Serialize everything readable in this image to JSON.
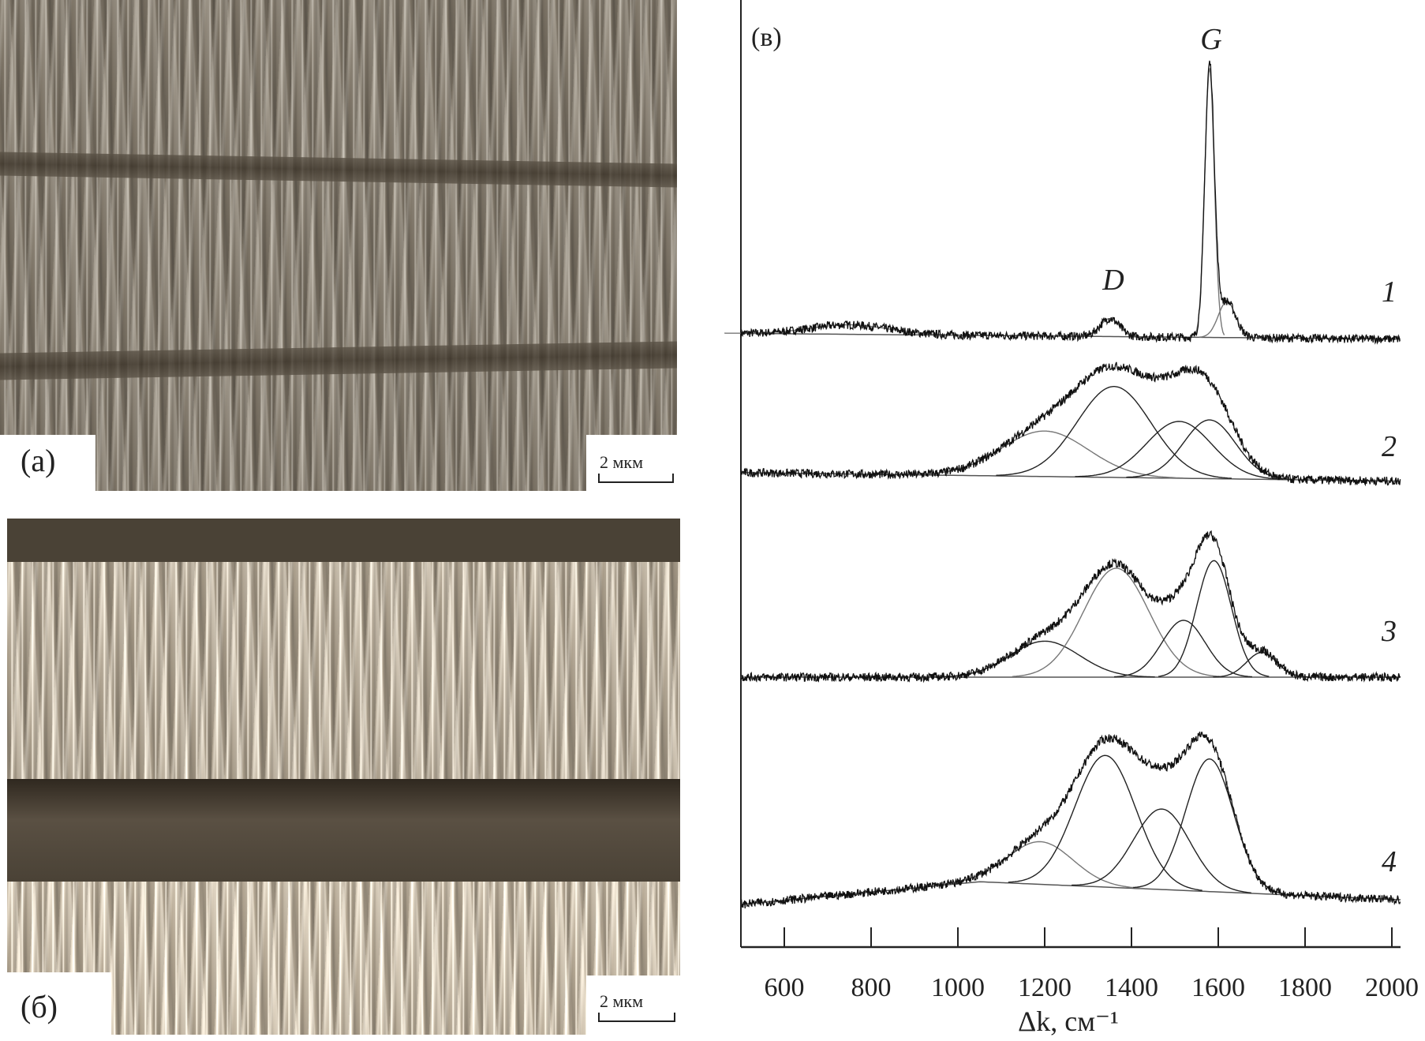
{
  "panels": {
    "a": {
      "label": "(a)",
      "scale_bar": "2 мкм"
    },
    "b": {
      "label": "(б)",
      "scale_bar": "2 мкм"
    },
    "c": {
      "label": "(в)"
    }
  },
  "colors": {
    "sem_tone": "#7d7466",
    "sem_dark": "#3e362b",
    "line": "#111111",
    "component_gray": "#777777"
  },
  "chart_data": {
    "type": "line",
    "title": "",
    "xlabel": "Δk, см⁻¹",
    "ylabel": "",
    "xlim": [
      500,
      2020
    ],
    "ylim": [
      0,
      100
    ],
    "y_ticks_shown": false,
    "grid": false,
    "xticks": [
      600,
      800,
      1000,
      1200,
      1400,
      1600,
      1800,
      2000
    ],
    "peak_labels": [
      {
        "text": "G",
        "x": 1580
      },
      {
        "text": "D",
        "x": 1350
      }
    ],
    "series": [
      {
        "name": "1",
        "baseline": [
          [
            500,
            64.8
          ],
          [
            2020,
            64.2
          ]
        ],
        "components": [
          {
            "center": 750,
            "amplitude": 1.0,
            "sigma": 90,
            "tone": "gray"
          },
          {
            "center": 1350,
            "amplitude": 1.9,
            "sigma": 22,
            "tone": "gray"
          },
          {
            "center": 1580,
            "amplitude": 28.5,
            "sigma": 11,
            "tone": "gray"
          },
          {
            "center": 1620,
            "amplitude": 3.8,
            "sigma": 20,
            "tone": "gray"
          }
        ]
      },
      {
        "name": "2",
        "baseline": [
          [
            500,
            50.1
          ],
          [
            2020,
            49.2
          ]
        ],
        "components": [
          {
            "center": 1200,
            "amplitude": 4.8,
            "sigma": 100,
            "tone": "gray"
          },
          {
            "center": 1360,
            "amplitude": 9.6,
            "sigma": 85,
            "tone": "black"
          },
          {
            "center": 1510,
            "amplitude": 6.0,
            "sigma": 75,
            "tone": "black"
          },
          {
            "center": 1580,
            "amplitude": 6.2,
            "sigma": 60,
            "tone": "black"
          }
        ]
      },
      {
        "name": "3",
        "baseline": [
          [
            500,
            28.5
          ],
          [
            2020,
            28.5
          ]
        ],
        "components": [
          {
            "center": 1200,
            "amplitude": 3.8,
            "sigma": 80,
            "tone": "black"
          },
          {
            "center": 1365,
            "amplitude": 11.5,
            "sigma": 75,
            "tone": "gray"
          },
          {
            "center": 1520,
            "amplitude": 6.0,
            "sigma": 50,
            "tone": "black"
          },
          {
            "center": 1590,
            "amplitude": 12.3,
            "sigma": 40,
            "tone": "black"
          },
          {
            "center": 1700,
            "amplitude": 2.6,
            "sigma": 35,
            "tone": "black"
          }
        ]
      },
      {
        "name": "4",
        "baseline": [
          [
            500,
            4.5
          ],
          [
            1050,
            6.9
          ],
          [
            2020,
            5.0
          ]
        ],
        "components": [
          {
            "center": 1190,
            "amplitude": 4.5,
            "sigma": 75,
            "tone": "gray"
          },
          {
            "center": 1340,
            "amplitude": 13.9,
            "sigma": 70,
            "tone": "black"
          },
          {
            "center": 1470,
            "amplitude": 8.5,
            "sigma": 65,
            "tone": "black"
          },
          {
            "center": 1580,
            "amplitude": 14.0,
            "sigma": 55,
            "tone": "black"
          }
        ]
      }
    ]
  }
}
